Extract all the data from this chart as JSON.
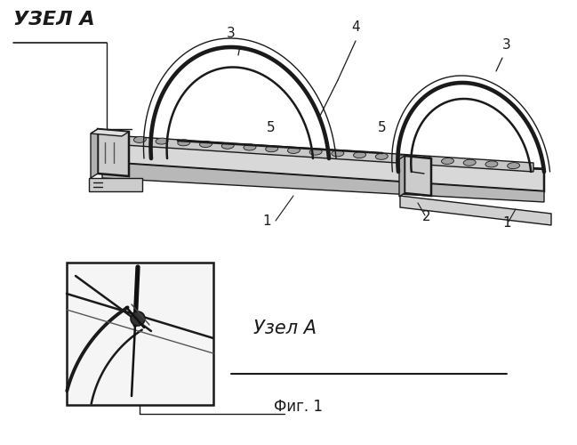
{
  "background_color": "#ffffff",
  "fig_width": 6.49,
  "fig_height": 5.0,
  "dpi": 100,
  "label_uzla_top": "УЗЕЛ А",
  "label_uzla_bottom": "Узел А",
  "label_fig": "Фиг. 1"
}
